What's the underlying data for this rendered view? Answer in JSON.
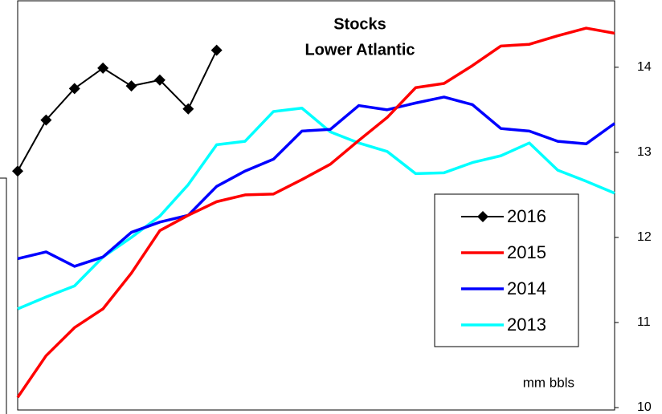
{
  "chart_data": {
    "type": "line",
    "title": "Stocks",
    "subtitle": "Lower Atlantic",
    "annotation": "mm bbls",
    "categories": [
      null,
      null,
      null,
      null,
      null,
      null,
      null,
      null,
      null,
      null,
      null,
      null,
      null,
      null,
      null,
      null,
      null,
      null,
      null,
      null,
      null,
      null
    ],
    "ylim": [
      10,
      14.8
    ],
    "yticks": [
      10,
      11,
      12,
      13,
      14
    ],
    "y_axis_side": "right",
    "grid": false,
    "legend_position": "center-right",
    "series": [
      {
        "name": "2016",
        "color": "#000000",
        "marker": "diamond",
        "values": [
          12.78,
          13.38,
          13.75,
          13.99,
          13.78,
          13.85,
          13.51,
          14.2,
          null,
          null,
          null,
          null,
          null,
          null,
          null,
          null,
          null,
          null,
          null,
          null,
          null,
          null
        ]
      },
      {
        "name": "2015",
        "color": "#ff0000",
        "values": [
          10.12,
          10.61,
          10.94,
          11.16,
          11.58,
          12.08,
          12.26,
          12.42,
          12.5,
          12.51,
          12.68,
          12.86,
          13.14,
          13.41,
          13.76,
          13.81,
          14.02,
          14.25,
          14.27,
          14.37,
          14.46,
          14.4
        ]
      },
      {
        "name": "2014",
        "color": "#0000ff",
        "values": [
          11.75,
          11.83,
          11.66,
          11.77,
          12.06,
          12.18,
          12.26,
          12.6,
          12.78,
          12.92,
          13.25,
          13.27,
          13.55,
          13.5,
          13.58,
          13.65,
          13.56,
          13.28,
          13.25,
          13.13,
          13.1,
          13.34
        ]
      },
      {
        "name": "2013",
        "color": "#00ffff",
        "values": [
          11.16,
          11.3,
          11.43,
          11.77,
          12.0,
          12.25,
          12.62,
          13.09,
          13.13,
          13.48,
          13.52,
          13.24,
          13.11,
          13.01,
          12.75,
          12.76,
          12.88,
          12.96,
          13.11,
          12.79,
          12.66,
          12.52
        ]
      }
    ]
  }
}
